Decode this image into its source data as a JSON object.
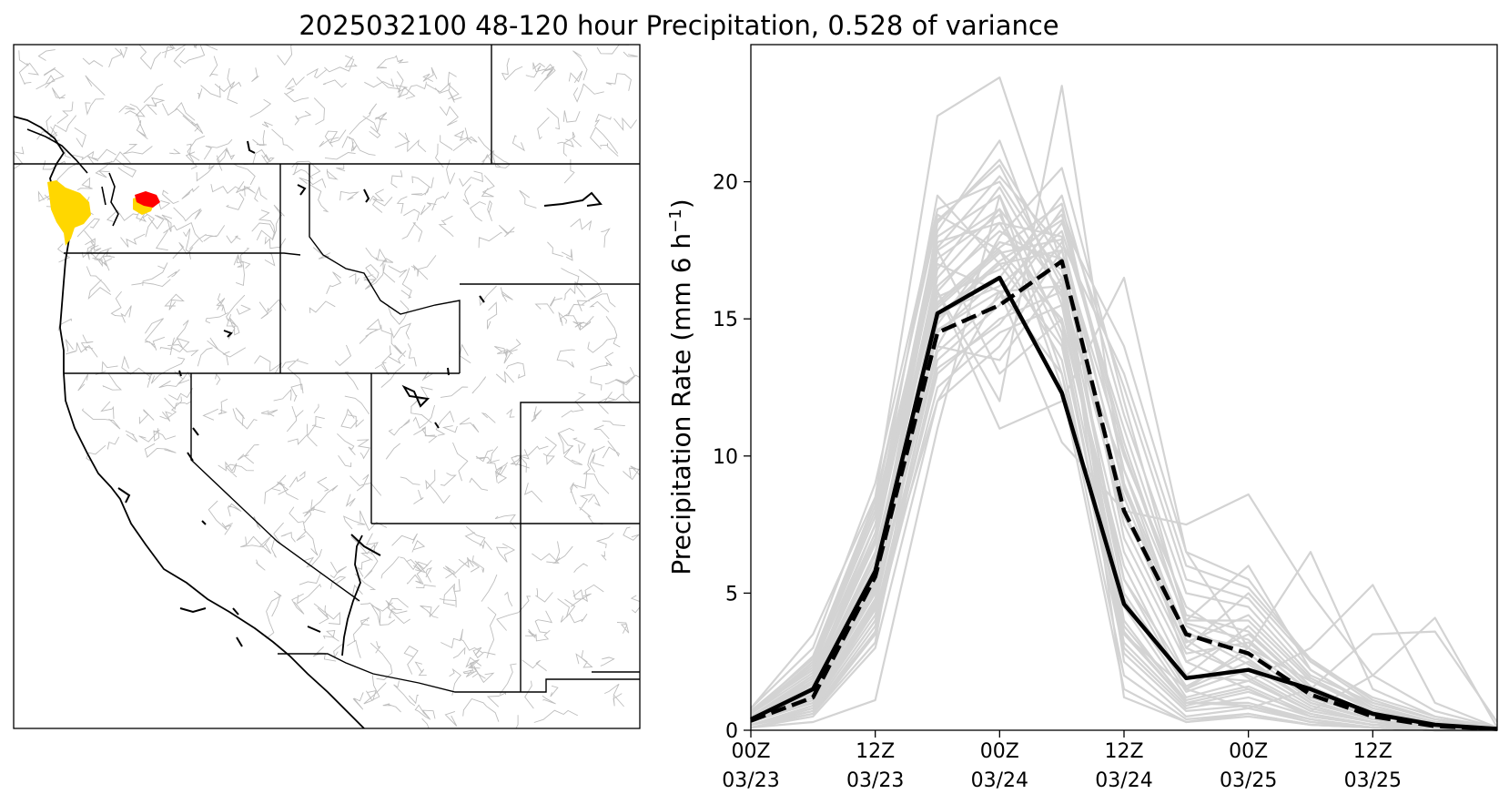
{
  "figure": {
    "title": "2025032100 48-120 hour Precipitation, 0.528 of variance"
  },
  "map": {
    "highlight_colors": {
      "gold": "#FFD700",
      "red": "#FF0000"
    },
    "line_colors": {
      "coast": "#000000",
      "basins": "#BDBDBD"
    }
  },
  "chart_data": {
    "type": "line",
    "xlabel": "",
    "ylabel_main": "Precipitation Rate (mm 6 h",
    "ylabel_sup": "−1",
    "ylabel_close": ")",
    "ylim": [
      0,
      25
    ],
    "xlim": [
      0,
      18
    ],
    "yticks": [
      0,
      5,
      10,
      15,
      20
    ],
    "xticks": [
      {
        "x": 0,
        "line1": "00Z",
        "line2": "03/23"
      },
      {
        "x": 3,
        "line1": "12Z",
        "line2": "03/23"
      },
      {
        "x": 6,
        "line1": "00Z",
        "line2": "03/24"
      },
      {
        "x": 9,
        "line1": "12Z",
        "line2": "03/24"
      },
      {
        "x": 12,
        "line1": "00Z",
        "line2": "03/25"
      },
      {
        "x": 15,
        "line1": "12Z",
        "line2": "03/25"
      }
    ],
    "x": [
      0,
      1.5,
      3,
      4.5,
      6,
      7.5,
      9,
      10.5,
      12,
      13.5,
      15,
      16.5,
      18
    ],
    "colors": {
      "members": "#D3D3D3",
      "highlight": "#000000"
    },
    "series": [
      {
        "style": "solid",
        "values": [
          0.4,
          1.5,
          5.8,
          15.2,
          16.5,
          12.3,
          4.6,
          1.9,
          2.2,
          1.5,
          0.6,
          0.2,
          0.05
        ]
      },
      {
        "style": "dashed",
        "values": [
          0.35,
          1.2,
          5.6,
          14.5,
          15.5,
          17.1,
          8.0,
          3.5,
          2.8,
          1.3,
          0.5,
          0.15,
          0.05
        ]
      }
    ],
    "members": [
      [
        0.3,
        1.2,
        5.0,
        18.5,
        20.8,
        17.0,
        2.5,
        0.5,
        0.8,
        0.3,
        0.1,
        0.0,
        0.0
      ],
      [
        0.5,
        2.0,
        7.5,
        19.5,
        17.0,
        14.0,
        3.5,
        1.0,
        1.5,
        0.5,
        0.2,
        0.1,
        0.0
      ],
      [
        0.2,
        0.8,
        4.0,
        13.0,
        15.0,
        16.0,
        8.5,
        3.0,
        2.0,
        0.8,
        0.3,
        0.1,
        0.0
      ],
      [
        0.6,
        2.5,
        8.0,
        17.5,
        19.0,
        12.5,
        1.5,
        0.3,
        0.5,
        0.2,
        0.1,
        0.0,
        0.0
      ],
      [
        0.4,
        1.8,
        6.5,
        16.0,
        18.5,
        18.0,
        7.0,
        2.5,
        3.5,
        1.5,
        0.5,
        0.2,
        0.05
      ],
      [
        0.1,
        0.5,
        3.0,
        12.0,
        14.0,
        17.5,
        10.0,
        4.5,
        3.0,
        1.8,
        0.8,
        0.3,
        0.1
      ],
      [
        0.8,
        3.0,
        9.0,
        19.0,
        20.0,
        16.5,
        4.0,
        1.0,
        1.0,
        0.4,
        0.1,
        0.0,
        0.0
      ],
      [
        0.3,
        1.0,
        4.5,
        14.5,
        16.5,
        19.5,
        11.5,
        5.0,
        4.5,
        2.0,
        1.0,
        0.4,
        0.1
      ],
      [
        0.5,
        1.5,
        5.5,
        15.5,
        17.5,
        15.0,
        5.5,
        1.5,
        2.5,
        1.0,
        0.4,
        0.1,
        0.0
      ],
      [
        0.2,
        0.6,
        3.5,
        13.5,
        15.5,
        18.5,
        14.0,
        6.5,
        5.5,
        2.5,
        1.2,
        0.5,
        0.1
      ],
      [
        0.7,
        2.2,
        7.0,
        18.0,
        19.5,
        14.5,
        3.0,
        0.8,
        1.2,
        0.5,
        0.2,
        0.1,
        0.0
      ],
      [
        0.4,
        1.4,
        5.2,
        15.0,
        17.0,
        17.5,
        9.0,
        3.5,
        3.0,
        1.2,
        0.5,
        0.2,
        0.05
      ],
      [
        0.3,
        1.1,
        4.8,
        14.0,
        18.0,
        20.5,
        12.0,
        4.0,
        6.0,
        2.2,
        0.8,
        0.3,
        0.1
      ],
      [
        0.6,
        2.4,
        7.8,
        17.0,
        16.0,
        13.0,
        2.0,
        0.4,
        0.6,
        0.2,
        0.1,
        0.0,
        0.0
      ],
      [
        0.5,
        1.7,
        6.0,
        16.5,
        19.0,
        16.0,
        6.5,
        2.0,
        3.8,
        1.6,
        0.6,
        0.2,
        0.05
      ],
      [
        0.2,
        0.7,
        3.8,
        12.5,
        14.5,
        15.5,
        9.5,
        4.0,
        4.0,
        1.8,
        0.7,
        0.3,
        0.1
      ],
      [
        0.4,
        1.3,
        5.4,
        15.8,
        16.8,
        18.8,
        10.5,
        3.8,
        2.6,
        1.0,
        0.4,
        0.1,
        0.0
      ],
      [
        0.6,
        2.1,
        7.2,
        18.2,
        21.5,
        15.5,
        4.5,
        1.2,
        1.8,
        0.7,
        0.3,
        0.1,
        0.0
      ],
      [
        0.3,
        1.0,
        4.6,
        14.8,
        17.8,
        17.2,
        8.0,
        3.0,
        5.0,
        2.5,
        1.0,
        0.4,
        0.1
      ],
      [
        0.5,
        1.9,
        6.8,
        17.2,
        18.8,
        14.2,
        3.2,
        0.9,
        1.4,
        0.6,
        0.2,
        0.1,
        0.0
      ],
      [
        0.2,
        0.9,
        4.2,
        13.8,
        15.8,
        19.0,
        12.5,
        5.5,
        4.8,
        2.2,
        0.9,
        0.3,
        0.1
      ],
      [
        0.4,
        1.6,
        5.9,
        16.2,
        18.2,
        16.8,
        7.5,
        2.8,
        3.2,
        1.4,
        0.5,
        0.2,
        0.05
      ],
      [
        0.7,
        2.6,
        8.2,
        18.8,
        17.5,
        13.5,
        2.8,
        0.7,
        0.9,
        0.4,
        0.1,
        0.0,
        0.0
      ],
      [
        0.3,
        1.2,
        5.0,
        15.2,
        16.2,
        18.2,
        11.0,
        4.2,
        3.6,
        1.5,
        0.6,
        0.2,
        0.05
      ],
      [
        0.5,
        1.8,
        6.2,
        16.8,
        19.8,
        15.8,
        5.0,
        1.6,
        2.8,
        1.1,
        0.4,
        0.1,
        0.0
      ],
      [
        0.2,
        0.8,
        4.0,
        13.2,
        14.8,
        17.8,
        13.0,
        6.0,
        5.2,
        2.6,
        1.1,
        0.4,
        0.1
      ],
      [
        0.6,
        2.3,
        7.5,
        17.8,
        18.5,
        14.8,
        3.8,
        1.1,
        1.6,
        0.6,
        0.2,
        0.1,
        0.0
      ],
      [
        0.4,
        1.5,
        5.6,
        15.6,
        17.6,
        19.2,
        9.5,
        3.2,
        4.2,
        1.9,
        0.8,
        0.3,
        0.1
      ],
      [
        0.3,
        1.1,
        4.7,
        14.6,
        16.0,
        16.2,
        7.8,
        3.6,
        2.4,
        1.0,
        0.4,
        0.1,
        0.0
      ],
      [
        0.5,
        2.0,
        6.9,
        17.6,
        20.2,
        17.6,
        4.8,
        1.4,
        2.2,
        0.9,
        0.3,
        0.1,
        0.0
      ],
      [
        0.8,
        3.5,
        8.5,
        22.4,
        23.8,
        17.0,
        1.2,
        0.3,
        0.6,
        0.2,
        0.1,
        0.0,
        0.0
      ],
      [
        0.4,
        1.7,
        6.4,
        16.0,
        12.0,
        23.5,
        9.0,
        2.5,
        1.5,
        0.5,
        0.2,
        0.0,
        0.0
      ],
      [
        0.1,
        0.6,
        3.2,
        16.0,
        11.0,
        12.0,
        16.5,
        6.5,
        3.0,
        1.2,
        0.5,
        0.2,
        0.05
      ],
      [
        0.2,
        0.9,
        4.4,
        12.0,
        16.0,
        10.5,
        8.0,
        7.5,
        8.6,
        5.0,
        2.0,
        0.7,
        0.1
      ],
      [
        0.3,
        1.2,
        6.0,
        17.5,
        13.0,
        15.0,
        6.0,
        1.5,
        3.0,
        6.5,
        1.5,
        0.5,
        0.1
      ],
      [
        0.2,
        0.7,
        3.6,
        14.0,
        13.5,
        16.5,
        5.5,
        2.0,
        1.8,
        3.0,
        5.3,
        1.0,
        0.1
      ],
      [
        0.4,
        1.4,
        5.3,
        15.4,
        17.4,
        17.9,
        8.8,
        3.3,
        1.9,
        0.7,
        2.0,
        4.1,
        0.1
      ],
      [
        0.1,
        0.3,
        1.1,
        11.0,
        19.5,
        13.0,
        3.5,
        1.5,
        0.8,
        1.5,
        3.5,
        3.6,
        0.3
      ],
      [
        0.6,
        2.7,
        8.4,
        18.6,
        20.6,
        16.2,
        3.6,
        1.0,
        0.9,
        0.3,
        0.1,
        0.0,
        0.0
      ],
      [
        0.3,
        1.3,
        5.1,
        15.1,
        17.1,
        18.6,
        10.2,
        3.9,
        3.3,
        1.3,
        0.5,
        0.2,
        0.05
      ]
    ]
  }
}
